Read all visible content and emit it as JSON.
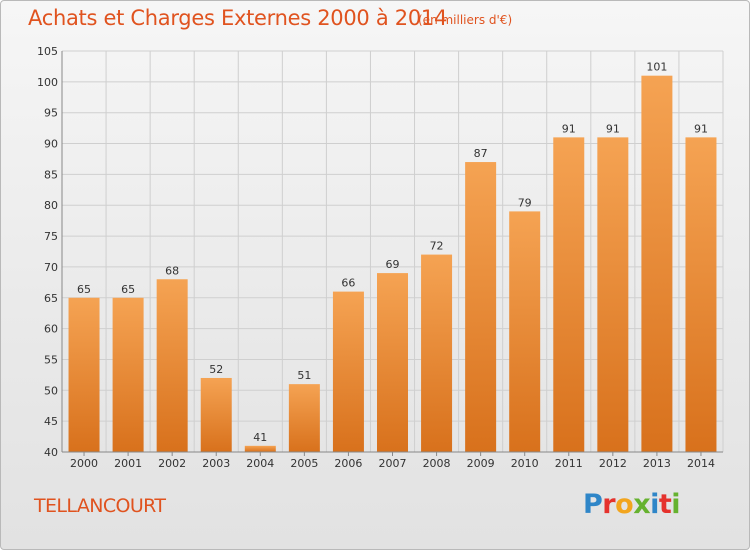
{
  "header": {
    "title": "Achats et Charges Externes 2000 à 2014",
    "subtitle": "(en milliers d'€)"
  },
  "footer": {
    "commune": "TELLANCOURT",
    "logo_letters": [
      {
        "char": "P",
        "color": "#2f86c8"
      },
      {
        "char": "r",
        "color": "#e5322d"
      },
      {
        "char": "o",
        "color": "#f2a51e"
      },
      {
        "char": "x",
        "color": "#66b22f"
      },
      {
        "char": "i",
        "color": "#2f86c8"
      },
      {
        "char": "t",
        "color": "#e5322d"
      },
      {
        "char": "i",
        "color": "#66b22f"
      }
    ]
  },
  "colors": {
    "accent": "#e0531f",
    "bar_light": "#f5a353",
    "bar_dark": "#d8711c",
    "grid": "#cfcfcf",
    "axis_text": "#333333"
  },
  "chart_data": {
    "type": "bar",
    "title": "Achats et Charges Externes 2000 à 2014",
    "subtitle": "(en milliers d'€)",
    "xlabel": "",
    "ylabel": "",
    "categories": [
      "2000",
      "2001",
      "2002",
      "2003",
      "2004",
      "2005",
      "2006",
      "2007",
      "2008",
      "2009",
      "2010",
      "2011",
      "2012",
      "2013",
      "2014"
    ],
    "values": [
      65,
      65,
      68,
      52,
      41,
      51,
      66,
      69,
      72,
      87,
      79,
      91,
      91,
      101,
      91
    ],
    "ylim": [
      40,
      105
    ],
    "yticks": [
      40,
      45,
      50,
      55,
      60,
      65,
      70,
      75,
      80,
      85,
      90,
      95,
      100,
      105
    ],
    "grid": true,
    "data_labels": true
  }
}
